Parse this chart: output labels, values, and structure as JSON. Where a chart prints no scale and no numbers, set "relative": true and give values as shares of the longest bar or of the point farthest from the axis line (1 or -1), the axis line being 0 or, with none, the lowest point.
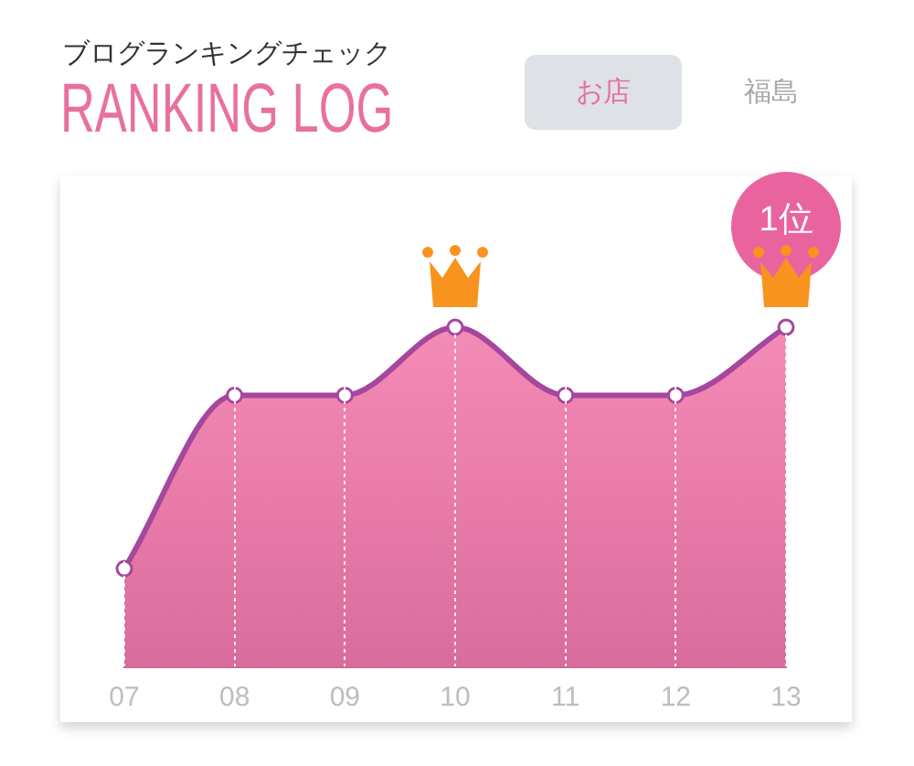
{
  "chart_data": {
    "type": "area",
    "title": "RANKING LOG",
    "subtitle": "ブログランキングチェック",
    "categories": [
      "07",
      "08",
      "09",
      "10",
      "11",
      "12",
      "13"
    ],
    "values": [
      0.29,
      0.8,
      0.8,
      1,
      0.8,
      0.8,
      1
    ],
    "color": "#e97ba9",
    "relative": true,
    "grid": "x",
    "marker": "circle",
    "annotations": [
      "お店",
      "福島",
      {
        "text": "1位",
        "x": "13",
        "y": 1
      }
    ]
  }
}
